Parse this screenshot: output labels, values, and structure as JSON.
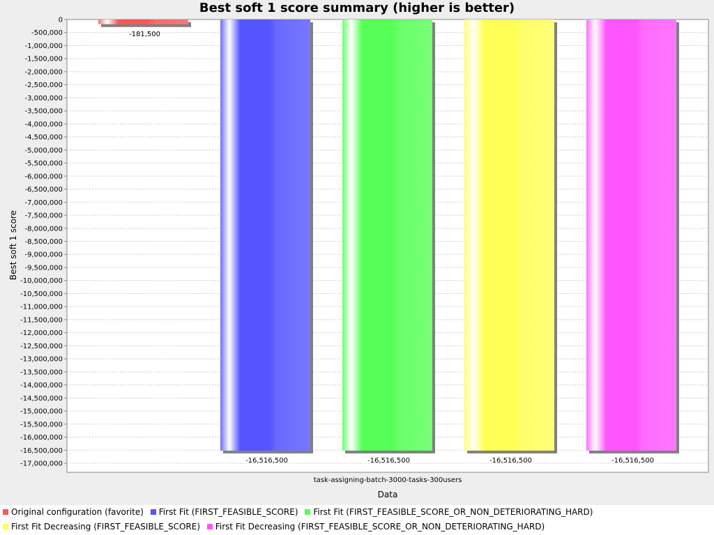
{
  "chart_data": {
    "type": "bar",
    "title": "Best soft 1 score summary (higher is better)",
    "xlabel": "Data",
    "ylabel": "Best soft 1 score",
    "categories": [
      "task-assigning-batch-3000-tasks-300users"
    ],
    "ylim": [
      -17250000,
      0
    ],
    "ytick_step": 500000,
    "yticks": [
      "0",
      "-500,000",
      "-1,000,000",
      "-1,500,000",
      "-2,000,000",
      "-2,500,000",
      "-3,000,000",
      "-3,500,000",
      "-4,000,000",
      "-4,500,000",
      "-5,000,000",
      "-5,500,000",
      "-6,000,000",
      "-6,500,000",
      "-7,000,000",
      "-7,500,000",
      "-8,000,000",
      "-8,500,000",
      "-9,000,000",
      "-9,500,000",
      "-10,000,000",
      "-10,500,000",
      "-11,000,000",
      "-11,500,000",
      "-12,000,000",
      "-12,500,000",
      "-13,000,000",
      "-13,500,000",
      "-14,000,000",
      "-14,500,000",
      "-15,000,000",
      "-15,500,000",
      "-16,000,000",
      "-16,500,000",
      "-17,000,000"
    ],
    "grid": true,
    "legend_position": "bottom",
    "series": [
      {
        "name": "Original configuration (favorite)",
        "color": "#ff5555",
        "values": [
          -181500
        ],
        "data_labels": [
          "-181,500"
        ]
      },
      {
        "name": "First Fit (FIRST_FEASIBLE_SCORE)",
        "color": "#5555ff",
        "values": [
          -16516500
        ],
        "data_labels": [
          "-16,516,500"
        ]
      },
      {
        "name": "First Fit (FIRST_FEASIBLE_SCORE_OR_NON_DETERIORATING_HARD)",
        "color": "#55ff55",
        "values": [
          -16516500
        ],
        "data_labels": [
          "-16,516,500"
        ]
      },
      {
        "name": "First Fit Decreasing (FIRST_FEASIBLE_SCORE)",
        "color": "#ffff55",
        "values": [
          -16516500
        ],
        "data_labels": [
          "-16,516,500"
        ]
      },
      {
        "name": "First Fit Decreasing (FIRST_FEASIBLE_SCORE_OR_NON_DETERIORATING_HARD)",
        "color": "#ff55ff",
        "values": [
          -16516500
        ],
        "data_labels": [
          "-16,516,500"
        ]
      }
    ]
  }
}
